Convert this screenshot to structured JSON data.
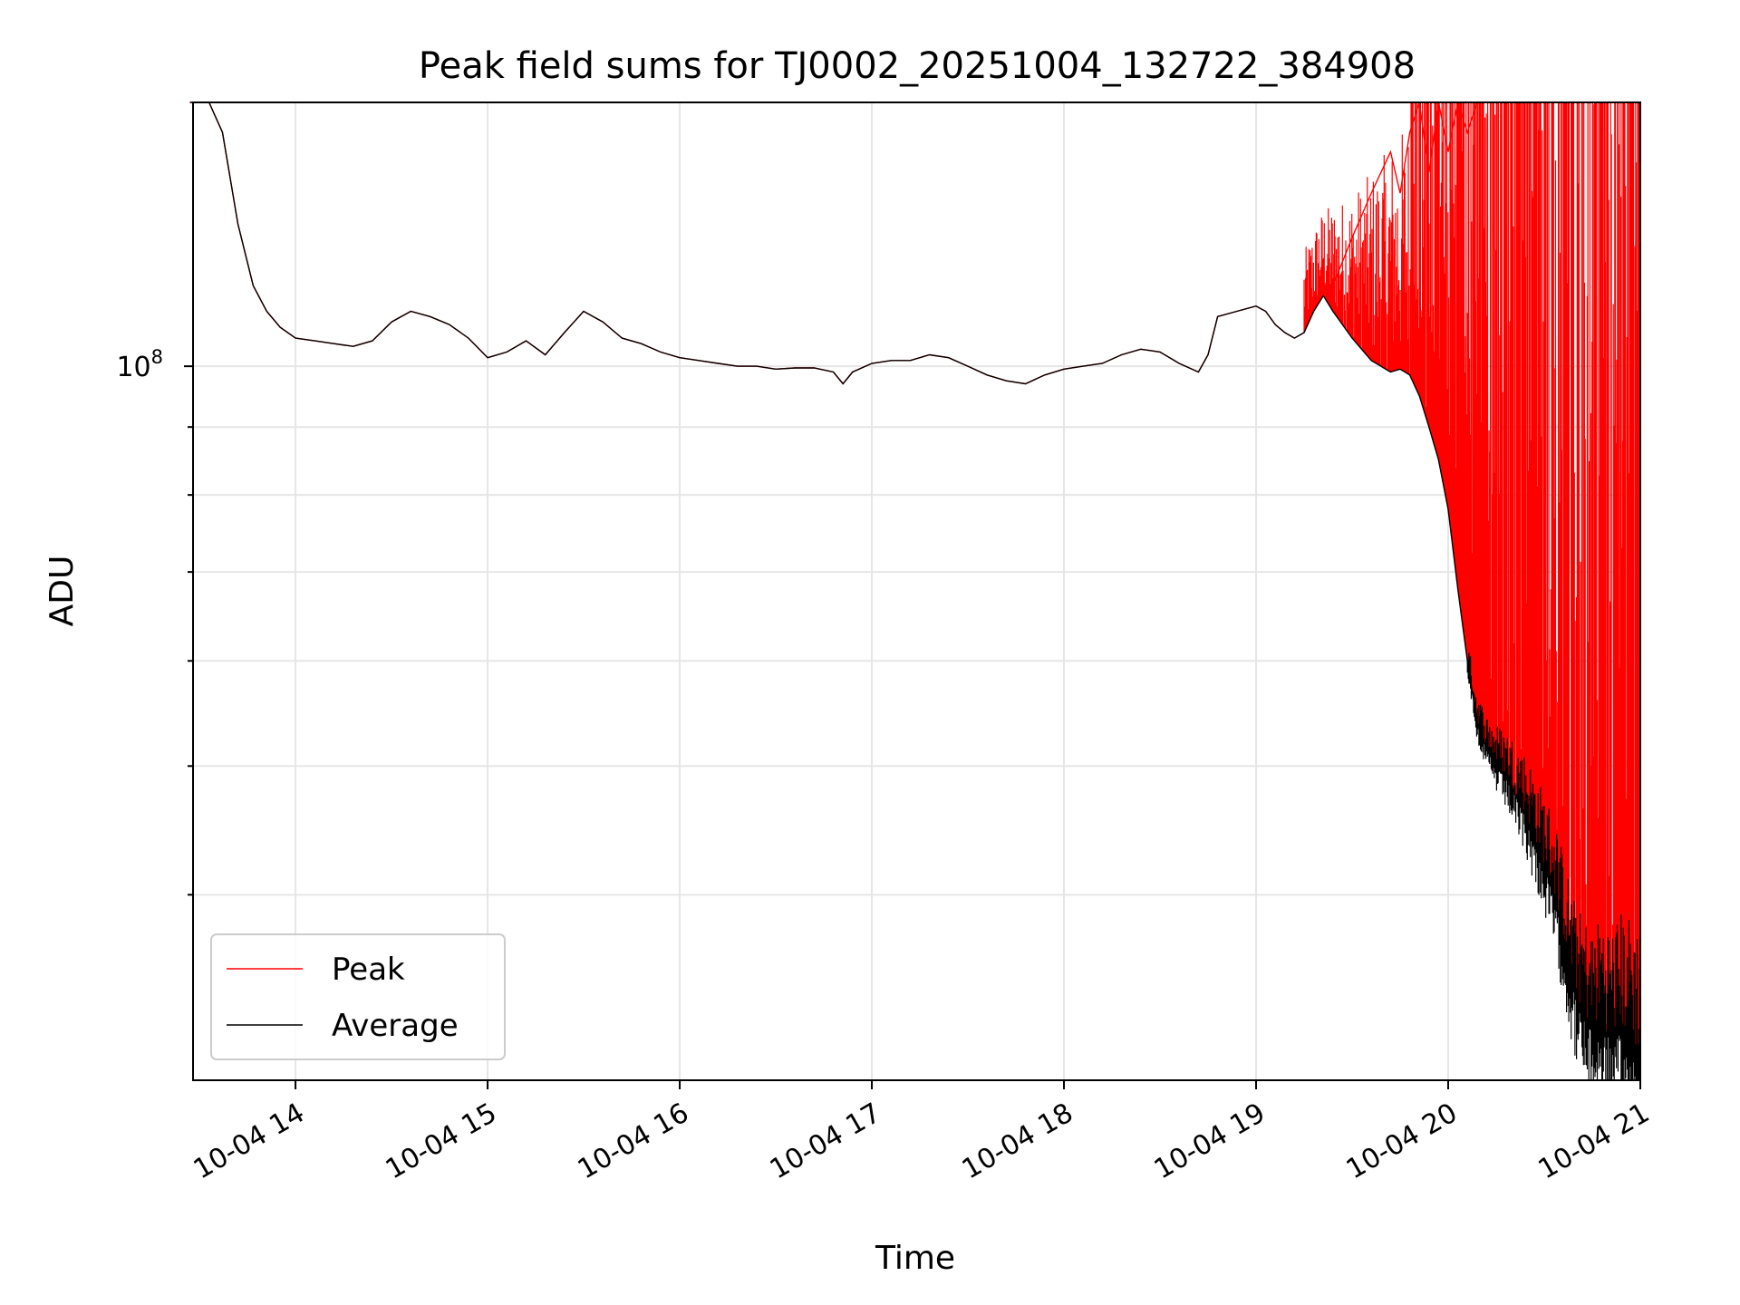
{
  "chart_data": {
    "type": "line",
    "title": "Peak field sums for TJ0002_20251004_132722_384908",
    "xlabel": "Time",
    "ylabel": "ADU",
    "y_scale": "log",
    "ylim": [
      29000000,
      158000000
    ],
    "xlim": [
      "2025-10-04 13:28",
      "2025-10-04 21:00"
    ],
    "x_ticks": [
      "10-04 14",
      "10-04 15",
      "10-04 16",
      "10-04 17",
      "10-04 18",
      "10-04 19",
      "10-04 20",
      "10-04 21"
    ],
    "y_major_tick_label": "10^8",
    "y_major_tick_value": 100000000,
    "y_minor_ticks": [
      40000000,
      50000000,
      60000000,
      70000000,
      80000000,
      90000000,
      200000000
    ],
    "grid": true,
    "legend_placement": "lower-left",
    "x_hours": [
      13.45,
      13.55,
      13.62,
      13.7,
      13.78,
      13.85,
      13.92,
      14.0,
      14.1,
      14.2,
      14.3,
      14.4,
      14.5,
      14.6,
      14.7,
      14.8,
      14.9,
      15.0,
      15.1,
      15.2,
      15.3,
      15.4,
      15.5,
      15.6,
      15.7,
      15.8,
      15.9,
      16.0,
      16.1,
      16.2,
      16.3,
      16.4,
      16.5,
      16.6,
      16.7,
      16.8,
      16.85,
      16.9,
      17.0,
      17.1,
      17.2,
      17.3,
      17.4,
      17.5,
      17.6,
      17.7,
      17.8,
      17.9,
      18.0,
      18.1,
      18.2,
      18.3,
      18.4,
      18.5,
      18.6,
      18.7,
      18.75,
      18.8,
      18.9,
      19.0,
      19.05,
      19.1,
      19.15,
      19.2,
      19.25,
      19.3,
      19.35,
      19.4,
      19.5,
      19.6,
      19.7,
      19.75,
      19.8,
      19.85,
      19.9,
      19.95,
      20.0,
      20.05,
      20.1,
      20.15,
      20.2,
      20.25,
      20.3,
      20.35,
      20.4,
      20.45,
      20.5,
      20.55,
      20.6,
      20.65,
      20.7,
      20.75,
      20.8,
      20.85,
      20.9,
      20.95,
      21.0
    ],
    "series": [
      {
        "name": "Peak",
        "color": "#ff0000",
        "values": [
          158000000,
          158000000,
          150000000,
          128000000,
          115000000,
          110000000,
          107000000,
          105000000,
          104500000,
          104000000,
          103500000,
          104500000,
          108000000,
          110000000,
          109000000,
          107500000,
          105000000,
          101500000,
          102500000,
          104500000,
          102000000,
          106000000,
          110000000,
          108000000,
          105000000,
          104000000,
          102500000,
          101500000,
          101000000,
          100500000,
          100000000,
          100000000,
          99500000,
          99700000,
          99700000,
          99000000,
          97000000,
          99000000,
          100500000,
          101000000,
          101000000,
          102000000,
          101500000,
          100000000,
          98500000,
          97500000,
          97000000,
          98500000,
          99500000,
          100000000,
          100500000,
          102000000,
          103000000,
          102500000,
          100500000,
          99000000,
          102000000,
          109000000,
          110000000,
          111000000,
          110000000,
          107500000,
          106000000,
          105000000,
          106000000,
          110000000,
          113000000,
          115000000,
          125000000,
          135000000,
          145000000,
          135000000,
          150000000,
          158000000,
          140000000,
          158000000,
          145000000,
          158000000,
          150000000,
          158000000,
          158000000,
          158000000,
          158000000,
          158000000,
          158000000,
          158000000,
          158000000,
          158000000,
          158000000,
          158000000,
          158000000,
          158000000,
          158000000,
          158000000,
          158000000,
          158000000,
          158000000
        ]
      },
      {
        "name": "Average",
        "color": "#000000",
        "values": [
          158000000,
          158000000,
          150000000,
          128000000,
          115000000,
          110000000,
          107000000,
          105000000,
          104500000,
          104000000,
          103500000,
          104500000,
          108000000,
          110000000,
          109000000,
          107500000,
          105000000,
          101500000,
          102500000,
          104500000,
          102000000,
          106000000,
          110000000,
          108000000,
          105000000,
          104000000,
          102500000,
          101500000,
          101000000,
          100500000,
          100000000,
          100000000,
          99500000,
          99700000,
          99700000,
          99000000,
          97000000,
          99000000,
          100500000,
          101000000,
          101000000,
          102000000,
          101500000,
          100000000,
          98500000,
          97500000,
          97000000,
          98500000,
          99500000,
          100000000,
          100500000,
          102000000,
          103000000,
          102500000,
          100500000,
          99000000,
          102000000,
          109000000,
          110000000,
          111000000,
          110000000,
          107500000,
          106000000,
          105000000,
          106000000,
          110000000,
          113000000,
          110000000,
          105000000,
          101000000,
          99000000,
          99500000,
          98500000,
          95000000,
          90000000,
          85000000,
          78000000,
          68000000,
          60000000,
          54000000,
          51500000,
          50000000,
          49000000,
          47500000,
          46000000,
          44000000,
          42000000,
          40000000,
          37000000,
          34000000,
          32500000,
          31500000,
          32000000,
          31000000,
          31500000,
          31000000,
          30000000
        ]
      }
    ]
  }
}
